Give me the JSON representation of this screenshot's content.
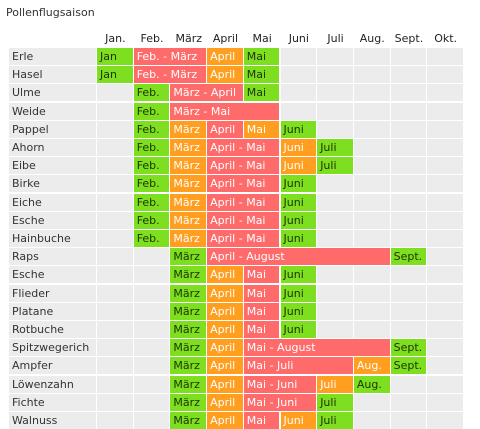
{
  "title": "Pollenflugsaison",
  "months": [
    "Jan.",
    "Feb.",
    "März",
    "April",
    "Mai",
    "Juni",
    "Juli",
    "Aug.",
    "Sept.",
    "Okt."
  ],
  "colors": {
    "green": "#7ddf1f",
    "orange": "#ff9e1f",
    "red": "#ff6b6b",
    "row_odd": "#ececec",
    "row_even": "#f5f5f5"
  },
  "rows": [
    {
      "name": "Erle",
      "segments": [
        {
          "start": 0,
          "end": 1,
          "color": "green",
          "label": "Jan"
        },
        {
          "start": 1,
          "end": 3,
          "color": "red",
          "label": "Feb. - März"
        },
        {
          "start": 3,
          "end": 4,
          "color": "orange",
          "label": "April"
        },
        {
          "start": 4,
          "end": 5,
          "color": "green",
          "label": "Mai"
        }
      ]
    },
    {
      "name": "Hasel",
      "segments": [
        {
          "start": 0,
          "end": 1,
          "color": "green",
          "label": "Jan"
        },
        {
          "start": 1,
          "end": 3,
          "color": "red",
          "label": "Feb. - März"
        },
        {
          "start": 3,
          "end": 4,
          "color": "orange",
          "label": "April"
        },
        {
          "start": 4,
          "end": 5,
          "color": "green",
          "label": "Mai"
        }
      ]
    },
    {
      "name": "Ulme",
      "segments": [
        {
          "start": 1,
          "end": 2,
          "color": "green",
          "label": "Feb."
        },
        {
          "start": 2,
          "end": 4,
          "color": "red",
          "label": "März - April"
        },
        {
          "start": 4,
          "end": 5,
          "color": "green",
          "label": "Mai"
        }
      ]
    },
    {
      "name": "Weide",
      "segments": [
        {
          "start": 1,
          "end": 2,
          "color": "green",
          "label": "Feb."
        },
        {
          "start": 2,
          "end": 5,
          "color": "red",
          "label": "März - Mai"
        }
      ]
    },
    {
      "name": "Pappel",
      "segments": [
        {
          "start": 1,
          "end": 2,
          "color": "green",
          "label": "Feb."
        },
        {
          "start": 2,
          "end": 3,
          "color": "orange",
          "label": "März"
        },
        {
          "start": 3,
          "end": 4,
          "color": "red",
          "label": "April"
        },
        {
          "start": 4,
          "end": 5,
          "color": "orange",
          "label": "Mai"
        },
        {
          "start": 5,
          "end": 6,
          "color": "green",
          "label": "Juni"
        }
      ]
    },
    {
      "name": "Ahorn",
      "segments": [
        {
          "start": 1,
          "end": 2,
          "color": "green",
          "label": "Feb."
        },
        {
          "start": 2,
          "end": 3,
          "color": "orange",
          "label": "März"
        },
        {
          "start": 3,
          "end": 5,
          "color": "red",
          "label": "April - Mai"
        },
        {
          "start": 5,
          "end": 6,
          "color": "orange",
          "label": "Juni"
        },
        {
          "start": 6,
          "end": 7,
          "color": "green",
          "label": "Juli"
        }
      ]
    },
    {
      "name": "Eibe",
      "segments": [
        {
          "start": 1,
          "end": 2,
          "color": "green",
          "label": "Feb."
        },
        {
          "start": 2,
          "end": 3,
          "color": "orange",
          "label": "März"
        },
        {
          "start": 3,
          "end": 5,
          "color": "red",
          "label": "April - Mai"
        },
        {
          "start": 5,
          "end": 6,
          "color": "orange",
          "label": "Juni"
        },
        {
          "start": 6,
          "end": 7,
          "color": "green",
          "label": "Juli"
        }
      ]
    },
    {
      "name": "Birke",
      "segments": [
        {
          "start": 1,
          "end": 2,
          "color": "green",
          "label": "Feb."
        },
        {
          "start": 2,
          "end": 3,
          "color": "orange",
          "label": "März"
        },
        {
          "start": 3,
          "end": 5,
          "color": "red",
          "label": "April - Mai"
        },
        {
          "start": 5,
          "end": 6,
          "color": "green",
          "label": "Juni"
        }
      ]
    },
    {
      "name": "Eiche",
      "segments": [
        {
          "start": 1,
          "end": 2,
          "color": "green",
          "label": "Feb."
        },
        {
          "start": 2,
          "end": 3,
          "color": "orange",
          "label": "März"
        },
        {
          "start": 3,
          "end": 5,
          "color": "red",
          "label": "April - Mai"
        },
        {
          "start": 5,
          "end": 6,
          "color": "green",
          "label": "Juni"
        }
      ]
    },
    {
      "name": "Esche",
      "segments": [
        {
          "start": 1,
          "end": 2,
          "color": "green",
          "label": "Feb."
        },
        {
          "start": 2,
          "end": 3,
          "color": "orange",
          "label": "März"
        },
        {
          "start": 3,
          "end": 5,
          "color": "red",
          "label": "April - Mai"
        },
        {
          "start": 5,
          "end": 6,
          "color": "green",
          "label": "Juni"
        }
      ]
    },
    {
      "name": "Hainbuche",
      "segments": [
        {
          "start": 1,
          "end": 2,
          "color": "green",
          "label": "Feb."
        },
        {
          "start": 2,
          "end": 3,
          "color": "orange",
          "label": "März"
        },
        {
          "start": 3,
          "end": 5,
          "color": "red",
          "label": "April - Mai"
        },
        {
          "start": 5,
          "end": 6,
          "color": "green",
          "label": "Juni"
        }
      ]
    },
    {
      "name": "Raps",
      "segments": [
        {
          "start": 2,
          "end": 3,
          "color": "green",
          "label": "März"
        },
        {
          "start": 3,
          "end": 8,
          "color": "red",
          "label": "April - August"
        },
        {
          "start": 8,
          "end": 9,
          "color": "green",
          "label": "Sept."
        }
      ]
    },
    {
      "name": "Esche",
      "segments": [
        {
          "start": 2,
          "end": 3,
          "color": "green",
          "label": "März"
        },
        {
          "start": 3,
          "end": 4,
          "color": "orange",
          "label": "April"
        },
        {
          "start": 4,
          "end": 5,
          "color": "red",
          "label": "Mai"
        },
        {
          "start": 5,
          "end": 6,
          "color": "green",
          "label": "Juni"
        }
      ]
    },
    {
      "name": "Flieder",
      "segments": [
        {
          "start": 2,
          "end": 3,
          "color": "green",
          "label": "März"
        },
        {
          "start": 3,
          "end": 4,
          "color": "orange",
          "label": "April"
        },
        {
          "start": 4,
          "end": 5,
          "color": "red",
          "label": "Mai"
        },
        {
          "start": 5,
          "end": 6,
          "color": "green",
          "label": "Juni"
        }
      ]
    },
    {
      "name": "Platane",
      "segments": [
        {
          "start": 2,
          "end": 3,
          "color": "green",
          "label": "März"
        },
        {
          "start": 3,
          "end": 4,
          "color": "orange",
          "label": "April"
        },
        {
          "start": 4,
          "end": 5,
          "color": "red",
          "label": "Mai"
        },
        {
          "start": 5,
          "end": 6,
          "color": "green",
          "label": "Juni"
        }
      ]
    },
    {
      "name": "Rotbuche",
      "segments": [
        {
          "start": 2,
          "end": 3,
          "color": "green",
          "label": "März"
        },
        {
          "start": 3,
          "end": 4,
          "color": "orange",
          "label": "April"
        },
        {
          "start": 4,
          "end": 5,
          "color": "red",
          "label": "Mai"
        },
        {
          "start": 5,
          "end": 6,
          "color": "green",
          "label": "Juni"
        }
      ]
    },
    {
      "name": "Spitzwegerich",
      "segments": [
        {
          "start": 2,
          "end": 3,
          "color": "green",
          "label": "März"
        },
        {
          "start": 3,
          "end": 4,
          "color": "orange",
          "label": "April"
        },
        {
          "start": 4,
          "end": 8,
          "color": "red",
          "label": "Mai - August"
        },
        {
          "start": 8,
          "end": 9,
          "color": "green",
          "label": "Sept."
        }
      ]
    },
    {
      "name": "Ampfer",
      "segments": [
        {
          "start": 2,
          "end": 3,
          "color": "green",
          "label": "März"
        },
        {
          "start": 3,
          "end": 4,
          "color": "orange",
          "label": "April"
        },
        {
          "start": 4,
          "end": 7,
          "color": "red",
          "label": "Mai - Juli"
        },
        {
          "start": 7,
          "end": 8,
          "color": "orange",
          "label": "Aug."
        },
        {
          "start": 8,
          "end": 9,
          "color": "green",
          "label": "Sept."
        }
      ]
    },
    {
      "name": "Löwenzahn",
      "segments": [
        {
          "start": 2,
          "end": 3,
          "color": "green",
          "label": "März"
        },
        {
          "start": 3,
          "end": 4,
          "color": "orange",
          "label": "April"
        },
        {
          "start": 4,
          "end": 6,
          "color": "red",
          "label": "Mai - Juni"
        },
        {
          "start": 6,
          "end": 7,
          "color": "orange",
          "label": "Juli"
        },
        {
          "start": 7,
          "end": 8,
          "color": "green",
          "label": "Aug."
        }
      ]
    },
    {
      "name": "Fichte",
      "segments": [
        {
          "start": 2,
          "end": 3,
          "color": "green",
          "label": "März"
        },
        {
          "start": 3,
          "end": 4,
          "color": "orange",
          "label": "April"
        },
        {
          "start": 4,
          "end": 6,
          "color": "red",
          "label": "Mai - Juni"
        },
        {
          "start": 6,
          "end": 7,
          "color": "green",
          "label": "Juli"
        }
      ]
    },
    {
      "name": "Walnuss",
      "segments": [
        {
          "start": 2,
          "end": 3,
          "color": "green",
          "label": "März"
        },
        {
          "start": 3,
          "end": 4,
          "color": "orange",
          "label": "April"
        },
        {
          "start": 4,
          "end": 5,
          "color": "red",
          "label": "Mai"
        },
        {
          "start": 5,
          "end": 6,
          "color": "orange",
          "label": "Juni"
        },
        {
          "start": 6,
          "end": 7,
          "color": "green",
          "label": "Juli"
        }
      ]
    }
  ]
}
